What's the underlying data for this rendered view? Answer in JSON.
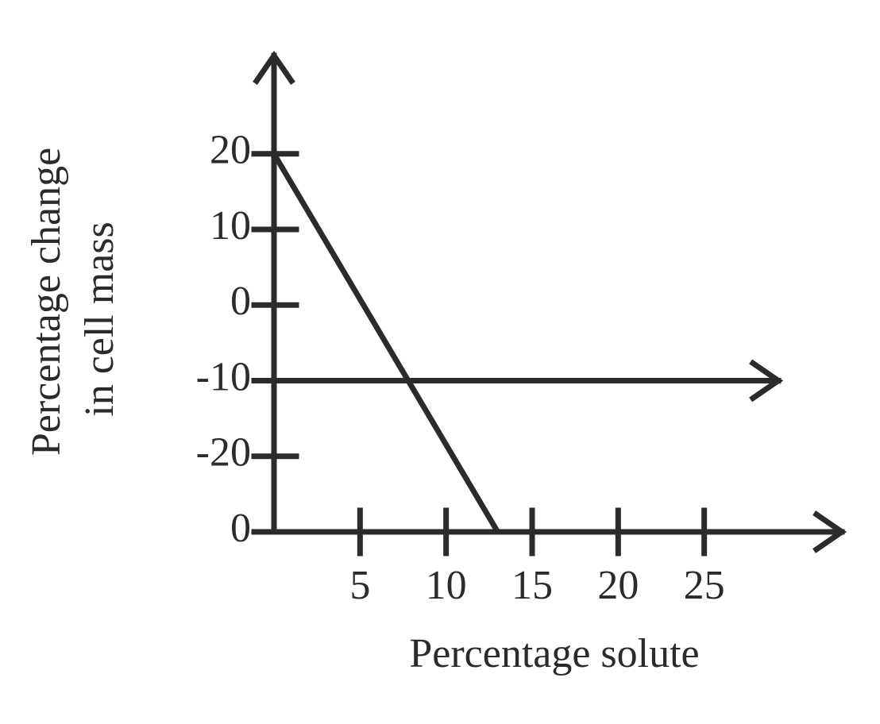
{
  "chart_data": {
    "type": "line",
    "xlabel": "Percentage solute",
    "ylabel": [
      "Percentage change",
      "in cell mass"
    ],
    "x": [
      0,
      13
    ],
    "series": [
      {
        "color": "#2b2b2b",
        "values": [
          20,
          -30
        ]
      }
    ],
    "reference_line_y": -10,
    "xlim": [
      0,
      33
    ],
    "ylim": [
      -30,
      33
    ],
    "xticks": [
      5,
      10,
      15,
      20,
      25
    ],
    "yticks": [
      20,
      10,
      0,
      -10,
      -20,
      {
        "value": -30,
        "label": "0"
      }
    ]
  }
}
